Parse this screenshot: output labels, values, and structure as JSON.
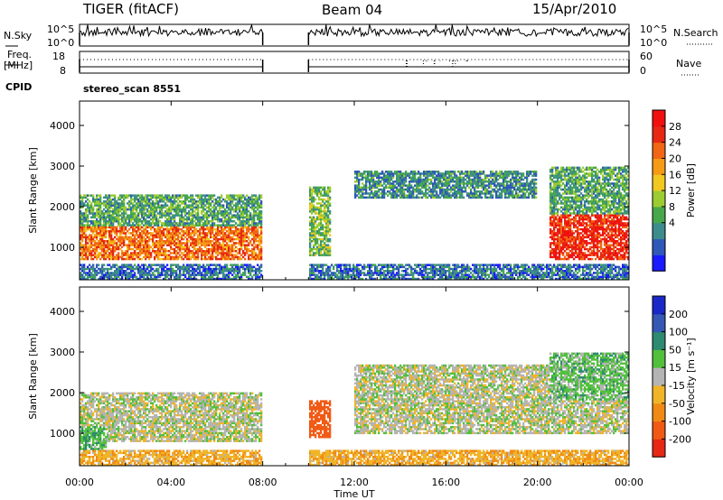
{
  "header": {
    "station": "TIGER (fitACF)",
    "beam": "Beam 04",
    "date": "15/Apr/2010"
  },
  "left_labels": {
    "nsky": "N.Sky",
    "freq_line1": "Freq.",
    "freq_line2": "[MHz]",
    "cpid": "CPID"
  },
  "right_labels": {
    "nsearch": "N.Search",
    "nave": "Nave"
  },
  "noise_panel": {
    "left_ticks": [
      "10^5",
      "10^0"
    ],
    "right_ticks": [
      "10^5",
      "10^0"
    ]
  },
  "freq_panel": {
    "left_ticks": [
      "18",
      "8"
    ],
    "right_ticks": [
      "60",
      "0"
    ]
  },
  "cpid_text": "stereo_scan 8551",
  "range_axis": {
    "label": "Slant Range [km]",
    "ticks": [
      "1000",
      "2000",
      "3000",
      "4000"
    ],
    "tick_values": [
      1000,
      2000,
      3000,
      4000
    ],
    "ylim": [
      200,
      4600
    ]
  },
  "time_axis": {
    "label": "Time UT",
    "ticks": [
      "00:00",
      "04:00",
      "08:00",
      "12:00",
      "16:00",
      "20:00",
      "00:00"
    ],
    "tick_hours": [
      0,
      4,
      8,
      12,
      16,
      20,
      24
    ]
  },
  "power_scale": {
    "label": "Power [dB]",
    "ticks": [
      "4",
      "8",
      "12",
      "16",
      "20",
      "24",
      "28"
    ],
    "colors": [
      "#1a1aff",
      "#2f58b8",
      "#3c8c8c",
      "#46a84a",
      "#9ccc32",
      "#f0c820",
      "#f59a14",
      "#f06614",
      "#e62814",
      "#f01010"
    ]
  },
  "velocity_scale": {
    "label": "Velocity [m s⁻¹]",
    "ticks": [
      "200",
      "100",
      "50",
      "15",
      "-15",
      "-50",
      "-100",
      "-200"
    ],
    "colors": [
      "#1a28c8",
      "#3458b4",
      "#2e8a70",
      "#52c03c",
      "#b4b4b4",
      "#f0b428",
      "#f08a14",
      "#f05a14",
      "#e62814"
    ]
  },
  "chart_data": [
    {
      "type": "heatmap",
      "name_text": "Power",
      "xlabel": "Time UT",
      "ylabel": "Slant Range [km]",
      "xlim_hours": [
        0,
        24
      ],
      "ylim_km": [
        200,
        4600
      ],
      "data_gap_hours": [
        8,
        10
      ],
      "colorbar": {
        "label": "Power [dB]",
        "range": [
          0,
          30
        ],
        "ticks": [
          4,
          8,
          12,
          16,
          20,
          24,
          28
        ]
      },
      "echo_regions": [
        {
          "t_start": 0.0,
          "t_end": 8.0,
          "range_low": 700,
          "range_high": 1500,
          "value_db": 22
        },
        {
          "t_start": 0.0,
          "t_end": 8.0,
          "range_low": 1500,
          "range_high": 2300,
          "value_db": 10
        },
        {
          "t_start": 10.0,
          "t_end": 11.0,
          "range_low": 800,
          "range_high": 2500,
          "value_db": 12
        },
        {
          "t_start": 12.0,
          "t_end": 20.0,
          "range_low": 2200,
          "range_high": 2900,
          "value_db": 8
        },
        {
          "t_start": 20.5,
          "t_end": 24.0,
          "range_low": 700,
          "range_high": 1800,
          "value_db": 26
        },
        {
          "t_start": 20.5,
          "t_end": 24.0,
          "range_low": 1800,
          "range_high": 3000,
          "value_db": 10
        },
        {
          "t_start": 0.0,
          "t_end": 24.0,
          "range_low": 200,
          "range_high": 600,
          "value_db": 6
        }
      ]
    },
    {
      "type": "heatmap",
      "name_text": "Velocity",
      "xlabel": "Time UT",
      "ylabel": "Slant Range [km]",
      "xlim_hours": [
        0,
        24
      ],
      "ylim_km": [
        200,
        4600
      ],
      "data_gap_hours": [
        8,
        10
      ],
      "colorbar": {
        "label": "Velocity [m s-1]",
        "range": [
          -250,
          250
        ],
        "ticks": [
          200,
          100,
          50,
          15,
          -15,
          -50,
          -100,
          -200
        ]
      },
      "echo_regions": [
        {
          "t_start": 0.0,
          "t_end": 8.0,
          "range_low": 800,
          "range_high": 2000,
          "value_ms": 0
        },
        {
          "t_start": 0.0,
          "t_end": 1.2,
          "range_low": 400,
          "range_high": 1200,
          "value_ms": 40
        },
        {
          "t_start": 10.0,
          "t_end": 11.0,
          "range_low": 900,
          "range_high": 1800,
          "value_ms": -150
        },
        {
          "t_start": 12.0,
          "t_end": 24.0,
          "range_low": 1000,
          "range_high": 2700,
          "value_ms": 0
        },
        {
          "t_start": 20.5,
          "t_end": 24.0,
          "range_low": 1800,
          "range_high": 3000,
          "value_ms": 30
        },
        {
          "t_start": 0.0,
          "t_end": 24.0,
          "range_low": 200,
          "range_high": 600,
          "value_ms": -40
        }
      ]
    }
  ]
}
